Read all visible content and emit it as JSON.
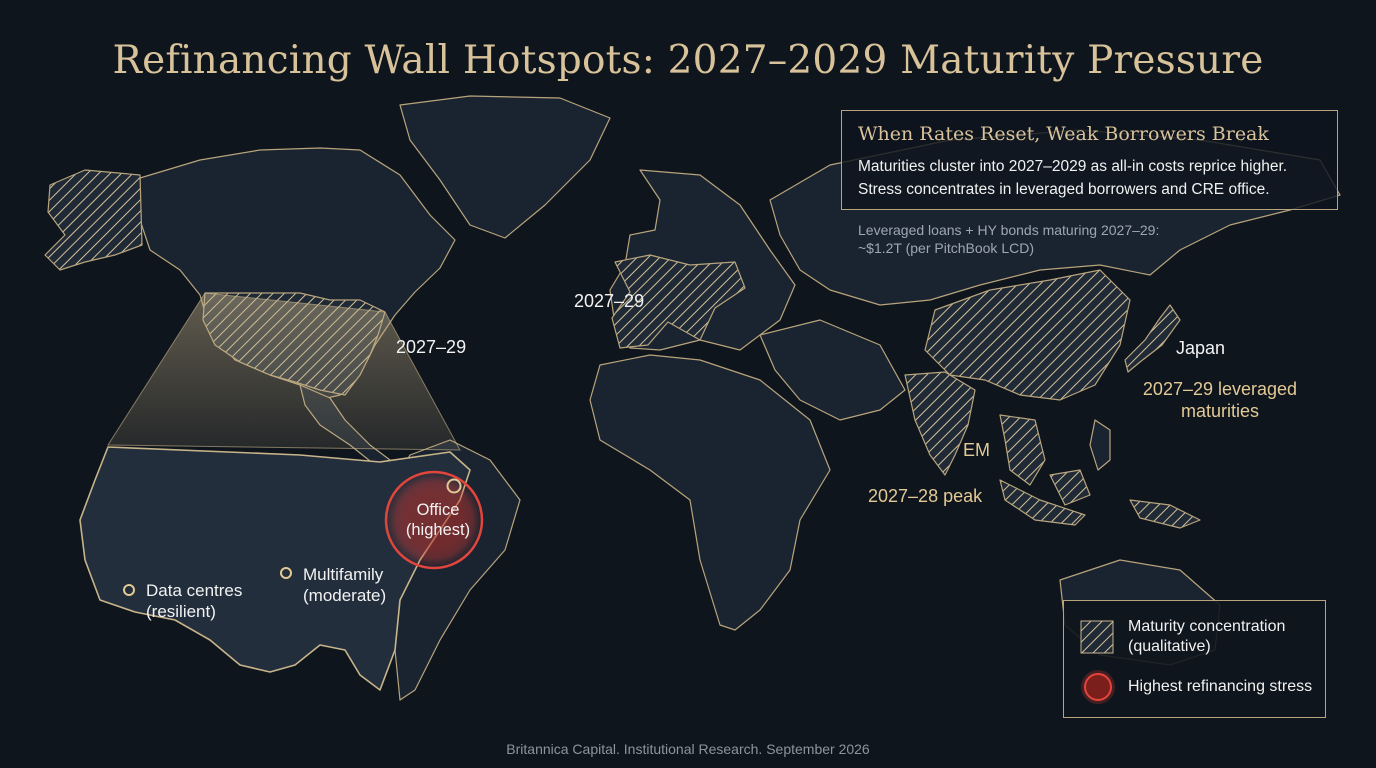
{
  "title": "Refinancing Wall Hotspots: 2027–2029 Maturity Pressure",
  "callout": {
    "title": "When Rates Reset, Weak Borrowers Break",
    "line1": "Maturities cluster into 2027–2029 as all-in costs reprice higher.",
    "line2": "Stress concentrates in leveraged borrowers and CRE office."
  },
  "stat": {
    "line1": "Leveraged loans + HY bonds maturing 2027–29:",
    "line2": "~$1.2T (per PitchBook LCD)"
  },
  "regions": {
    "us": "2027–29",
    "europe": "2027–29",
    "japan": {
      "name": "Japan",
      "line1": "2027–29 leveraged",
      "line2": "maturities"
    },
    "em": {
      "name": "EM",
      "note": "2027–28 peak"
    }
  },
  "us_inset": {
    "office": {
      "line1": "Office",
      "line2": "(highest)"
    },
    "multifamily": {
      "line1": "Multifamily",
      "line2": "(moderate)"
    },
    "datacentres": {
      "line1": "Data centres",
      "line2": "(resilient)"
    }
  },
  "legend": {
    "concentration": {
      "line1": "Maturity concentration",
      "line2": "(qualitative)"
    },
    "stress": "Highest refinancing stress"
  },
  "footer": "Britannica Capital. Institutional Research. September 2026",
  "colors": {
    "background": "#0f151d",
    "land": "#1a2430",
    "border": "#c8b48a",
    "gold": "#d8c29a",
    "stress_red": "#d8322c"
  },
  "icons": [
    "hatch-swatch-icon",
    "stress-ring-icon",
    "sector-marker-icon"
  ]
}
